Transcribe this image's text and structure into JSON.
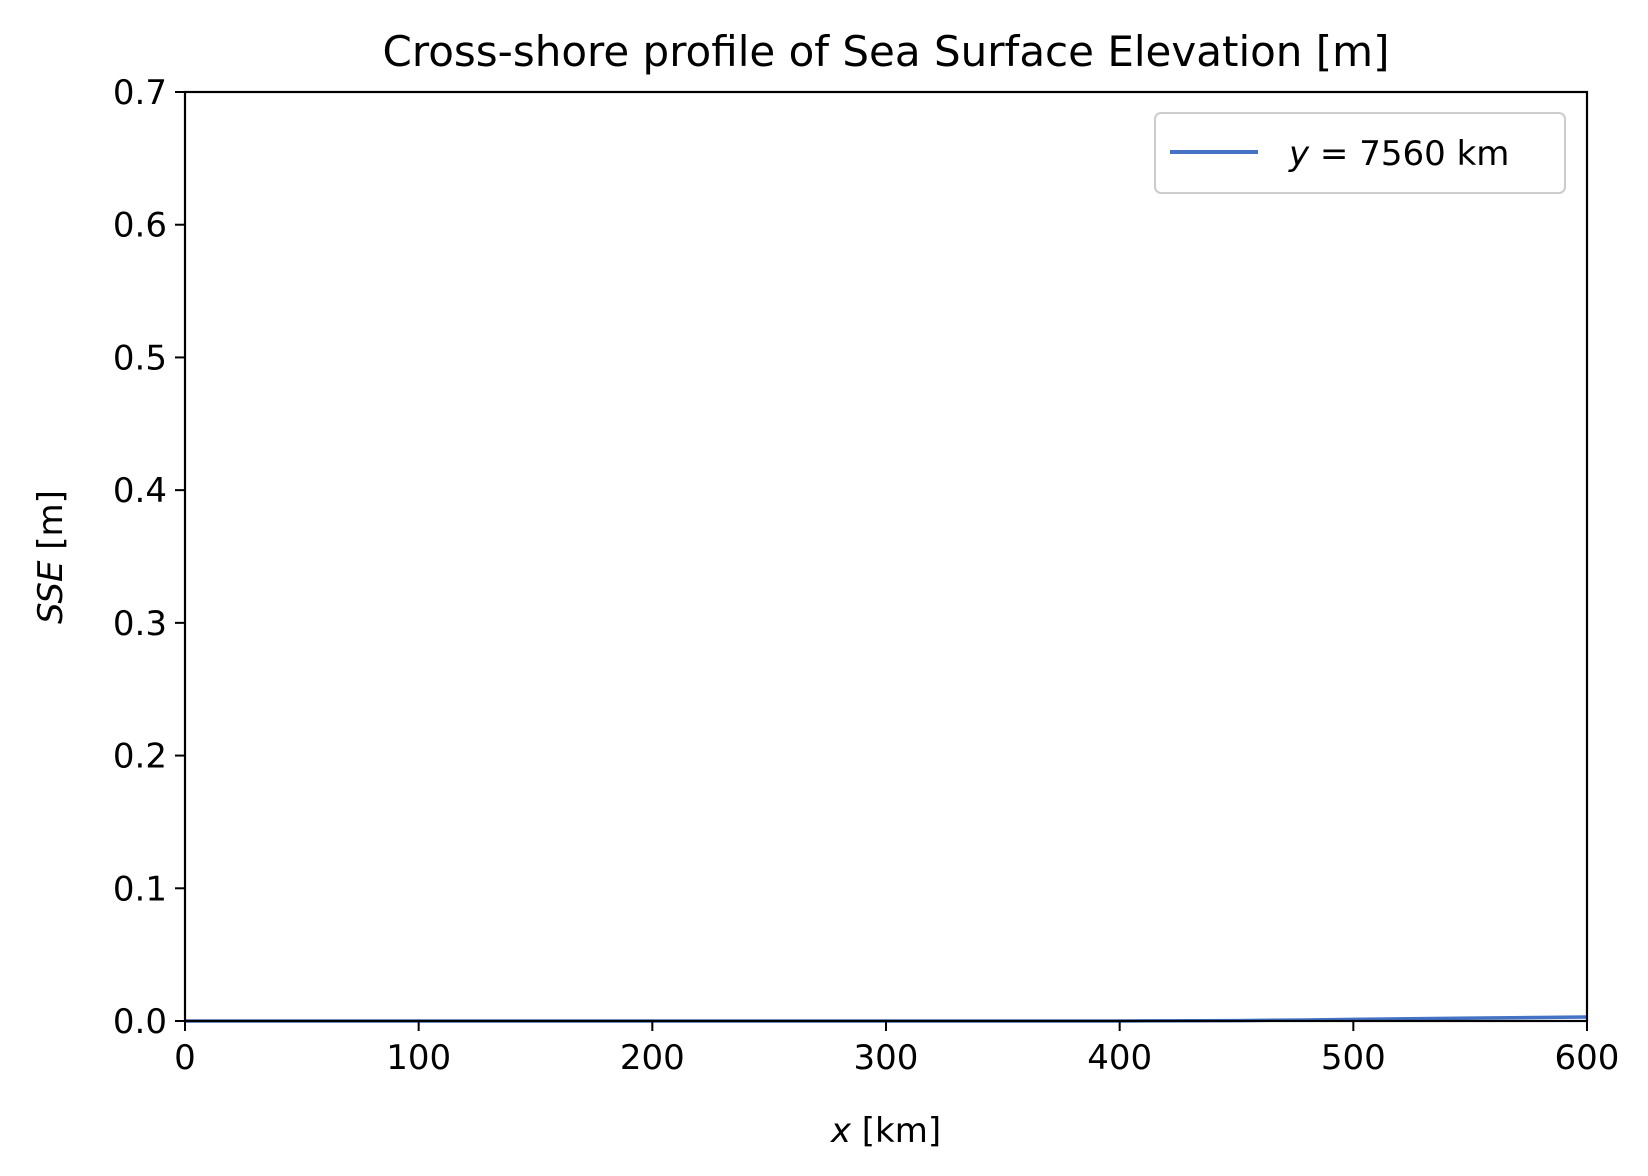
{
  "chart_data": {
    "type": "line",
    "title": "Cross-shore profile of Sea Surface Elevation [m]",
    "xlabel": {
      "var": "x",
      "unit": " [km]"
    },
    "ylabel": {
      "var": "SSE",
      "unit": " [m]"
    },
    "xlim": [
      0,
      600
    ],
    "ylim": [
      0,
      0.7
    ],
    "xticks": [
      0,
      100,
      200,
      300,
      400,
      500,
      600
    ],
    "yticks": [
      0.0,
      0.1,
      0.2,
      0.3,
      0.4,
      0.5,
      0.6,
      0.7
    ],
    "ytick_labels": [
      "0.0",
      "0.1",
      "0.2",
      "0.3",
      "0.4",
      "0.5",
      "0.6",
      "0.7"
    ],
    "grid": false,
    "legend_position": "top-right",
    "series": [
      {
        "name": "y = 7560 km",
        "legend": {
          "var": "y",
          "rest": " = 7560 km"
        },
        "color": "#4472c4",
        "x": [
          0,
          100,
          200,
          300,
          400,
          450,
          480,
          500,
          550,
          600
        ],
        "y": [
          0,
          0,
          0,
          0,
          0,
          0.0003,
          0.0008,
          0.0012,
          0.0022,
          0.003
        ]
      }
    ]
  }
}
